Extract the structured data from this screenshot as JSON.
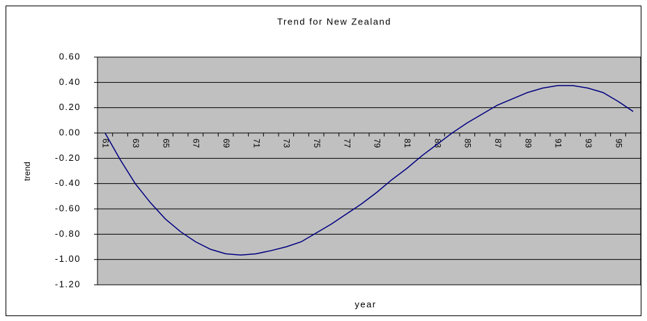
{
  "chart_data": {
    "type": "line",
    "title": "Trend for New Zealand",
    "xlabel": "year",
    "ylabel": "trend",
    "categories": [
      "61",
      null,
      "63",
      null,
      "65",
      null,
      "67",
      null,
      "69",
      null,
      "71",
      null,
      "73",
      null,
      "75",
      null,
      "77",
      null,
      "79",
      null,
      "81",
      null,
      "83",
      null,
      "85",
      null,
      "87",
      null,
      "89",
      null,
      "91",
      null,
      "93",
      null,
      "95",
      null
    ],
    "series": [
      {
        "name": "trend",
        "color": "#000080",
        "values": [
          0.0,
          -0.21,
          -0.4,
          -0.55,
          -0.68,
          -0.78,
          -0.86,
          -0.92,
          -0.955,
          -0.965,
          -0.955,
          -0.93,
          -0.9,
          -0.86,
          -0.79,
          -0.72,
          -0.64,
          -0.56,
          -0.47,
          -0.37,
          -0.28,
          -0.18,
          -0.09,
          0.0,
          0.08,
          0.15,
          0.22,
          0.27,
          0.32,
          0.355,
          0.375,
          0.375,
          0.355,
          0.32,
          0.25,
          0.17
        ]
      }
    ],
    "ylim": [
      -1.2,
      0.6
    ],
    "yticks": [
      {
        "value": -1.2,
        "label": "-1.20"
      },
      {
        "value": -1.0,
        "label": "-1.00"
      },
      {
        "value": -0.8,
        "label": "-0.80"
      },
      {
        "value": -0.6,
        "label": "-0.60"
      },
      {
        "value": -0.4,
        "label": "-0.40"
      },
      {
        "value": -0.2,
        "label": "-0.20"
      },
      {
        "value": 0,
        "label": "0.00"
      },
      {
        "value": 0.2,
        "label": "0.20"
      },
      {
        "value": 0.4,
        "label": "0.40"
      },
      {
        "value": 0.6,
        "label": "0.60"
      }
    ],
    "grid": true,
    "plot_background": "#c0c0c0"
  }
}
